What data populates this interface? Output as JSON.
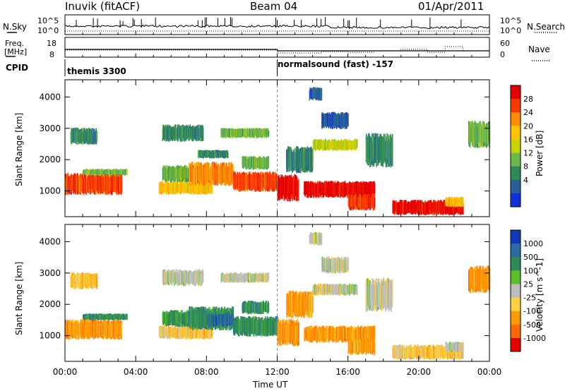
{
  "header": {
    "station": "Inuvik (fitACF)",
    "beam": "Beam 04",
    "date": "01/Apr/2011"
  },
  "status_panel": {
    "nsky_label": "N.Sky",
    "nsky_ticks": [
      "10^5",
      "10^0"
    ],
    "nsearch_label": "N.Search",
    "nsearch_ticks": [
      "10^5",
      "10^0"
    ],
    "freq_label": "Freq.",
    "freq_unit": "[MHz]",
    "freq_ticks": [
      "18",
      "8"
    ],
    "nave_label": "Nave",
    "nave_ticks": [
      "60",
      "0"
    ],
    "cpid_label": "CPID",
    "cpid_segments": [
      {
        "name": "themis 3300",
        "start_hour": 0
      },
      {
        "name": "normalsound (fast) -157",
        "start_hour": 12
      }
    ]
  },
  "x_axis": {
    "label": "Time UT",
    "ticks": [
      "00:00",
      "04:00",
      "08:00",
      "12:00",
      "16:00",
      "20:00",
      "00:00"
    ]
  },
  "chart_data": [
    {
      "type": "heatmap",
      "parameter": "Power",
      "ylabel": "Slant Range [km]",
      "yticks": [
        1000,
        2000,
        3000,
        4000
      ],
      "ylim": [
        180,
        4550
      ],
      "xlim_hours": [
        0,
        24
      ],
      "colorbar": {
        "label": "Power [dB]",
        "ticks": [
          "28",
          "24",
          "20",
          "16",
          "12",
          "8",
          "4"
        ],
        "colors": [
          "#e50000",
          "#ff3a00",
          "#ff8c00",
          "#ffc400",
          "#c8d400",
          "#6db84c",
          "#2e8b57",
          "#2a5f9e",
          "#1030d8"
        ]
      },
      "regions": [
        {
          "t": [
            0.0,
            3.2
          ],
          "r": [
            900,
            1550
          ],
          "c": 1
        },
        {
          "t": [
            1.0,
            3.5
          ],
          "r": [
            1500,
            1700
          ],
          "c": 5
        },
        {
          "t": [
            0.3,
            1.8
          ],
          "r": [
            2500,
            3000
          ],
          "c": 6
        },
        {
          "t": [
            5.3,
            8.3
          ],
          "r": [
            900,
            1300
          ],
          "c": 3
        },
        {
          "t": [
            5.5,
            8.5
          ],
          "r": [
            1300,
            1800
          ],
          "c": 5
        },
        {
          "t": [
            7.0,
            9.5
          ],
          "r": [
            1200,
            1900
          ],
          "c": 2
        },
        {
          "t": [
            7.5,
            9.2
          ],
          "r": [
            2050,
            2300
          ],
          "c": 6
        },
        {
          "t": [
            5.5,
            7.8
          ],
          "r": [
            2600,
            3100
          ],
          "c": 6
        },
        {
          "t": [
            8.8,
            11.5
          ],
          "r": [
            2700,
            3000
          ],
          "c": 5
        },
        {
          "t": [
            9.5,
            12.0
          ],
          "r": [
            1000,
            1600
          ],
          "c": 1
        },
        {
          "t": [
            10.0,
            11.5
          ],
          "r": [
            1700,
            2100
          ],
          "c": 5
        },
        {
          "t": [
            12.0,
            13.2
          ],
          "r": [
            700,
            1500
          ],
          "c": 0
        },
        {
          "t": [
            12.5,
            14.0
          ],
          "r": [
            1600,
            2400
          ],
          "c": 6
        },
        {
          "t": [
            13.5,
            17.5
          ],
          "r": [
            800,
            1300
          ],
          "c": 0
        },
        {
          "t": [
            14.0,
            16.5
          ],
          "r": [
            2300,
            2650
          ],
          "c": 4
        },
        {
          "t": [
            14.5,
            16.0
          ],
          "r": [
            3000,
            3500
          ],
          "c": 7
        },
        {
          "t": [
            16.0,
            17.5
          ],
          "r": [
            400,
            900
          ],
          "c": 1
        },
        {
          "t": [
            17.0,
            18.5
          ],
          "r": [
            1800,
            2800
          ],
          "c": 6
        },
        {
          "t": [
            18.5,
            22.5
          ],
          "r": [
            250,
            700
          ],
          "c": 0
        },
        {
          "t": [
            21.5,
            22.5
          ],
          "r": [
            500,
            800
          ],
          "c": 3
        },
        {
          "t": [
            22.8,
            24.0
          ],
          "r": [
            2400,
            3200
          ],
          "c": 5
        },
        {
          "t": [
            13.8,
            14.5
          ],
          "r": [
            3900,
            4300
          ],
          "c": 7
        }
      ]
    },
    {
      "type": "heatmap",
      "parameter": "Velocity",
      "ylabel": "Slant Range [km]",
      "yticks": [
        1000,
        2000,
        3000,
        4000
      ],
      "ylim": [
        180,
        4550
      ],
      "xlim_hours": [
        0,
        24
      ],
      "colorbar": {
        "label": "Velocity [m s^-1]",
        "ticks": [
          "1000",
          "500",
          "100",
          "25",
          "-25",
          "-100",
          "-500",
          "-1000"
        ],
        "colors": [
          "#1038b8",
          "#2a6ba0",
          "#2e8b57",
          "#59c02a",
          "#bdbdbd",
          "#ffd040",
          "#ff9a00",
          "#ff6a00",
          "#e50000"
        ]
      },
      "regions": [
        {
          "t": [
            0.0,
            3.2
          ],
          "r": [
            900,
            1500
          ],
          "c": 6
        },
        {
          "t": [
            1.0,
            3.5
          ],
          "r": [
            1500,
            1700
          ],
          "c": 2
        },
        {
          "t": [
            0.3,
            1.8
          ],
          "r": [
            2500,
            3000
          ],
          "c": 5
        },
        {
          "t": [
            5.3,
            8.3
          ],
          "r": [
            900,
            1300
          ],
          "c": 5
        },
        {
          "t": [
            5.5,
            8.5
          ],
          "r": [
            1300,
            1800
          ],
          "c": 2
        },
        {
          "t": [
            7.0,
            9.5
          ],
          "r": [
            1200,
            1900
          ],
          "c": 2
        },
        {
          "t": [
            8.0,
            9.5
          ],
          "r": [
            1300,
            1700
          ],
          "c": 1
        },
        {
          "t": [
            5.5,
            7.8
          ],
          "r": [
            2600,
            3100
          ],
          "c": 4
        },
        {
          "t": [
            8.8,
            11.5
          ],
          "r": [
            2700,
            3000
          ],
          "c": 4
        },
        {
          "t": [
            9.5,
            12.0
          ],
          "r": [
            1000,
            1600
          ],
          "c": 2
        },
        {
          "t": [
            10.0,
            11.5
          ],
          "r": [
            1700,
            2100
          ],
          "c": 2
        },
        {
          "t": [
            12.0,
            13.2
          ],
          "r": [
            700,
            1500
          ],
          "c": 6
        },
        {
          "t": [
            12.5,
            14.0
          ],
          "r": [
            1600,
            2400
          ],
          "c": 6
        },
        {
          "t": [
            13.5,
            17.5
          ],
          "r": [
            800,
            1300
          ],
          "c": 6
        },
        {
          "t": [
            14.0,
            16.5
          ],
          "r": [
            2300,
            2650
          ],
          "c": 4
        },
        {
          "t": [
            14.5,
            16.0
          ],
          "r": [
            3000,
            3500
          ],
          "c": 4
        },
        {
          "t": [
            16.0,
            17.5
          ],
          "r": [
            400,
            900
          ],
          "c": 6
        },
        {
          "t": [
            17.0,
            18.5
          ],
          "r": [
            1800,
            2800
          ],
          "c": 4
        },
        {
          "t": [
            18.5,
            22.5
          ],
          "r": [
            250,
            700
          ],
          "c": 5
        },
        {
          "t": [
            21.5,
            22.5
          ],
          "r": [
            500,
            800
          ],
          "c": 4
        },
        {
          "t": [
            22.8,
            24.0
          ],
          "r": [
            2400,
            3200
          ],
          "c": 6
        },
        {
          "t": [
            13.8,
            14.5
          ],
          "r": [
            3900,
            4300
          ],
          "c": 4
        }
      ]
    }
  ]
}
